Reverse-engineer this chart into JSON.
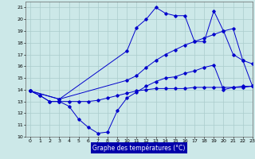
{
  "xlabel": "Graphe des températures (°C)",
  "bg_color": "#cce8e8",
  "grid_color": "#aacccc",
  "line_color": "#0000cc",
  "xlabel_bg": "#0000aa",
  "xlim": [
    -0.5,
    23
  ],
  "ylim": [
    10,
    21.5
  ],
  "xticks": [
    0,
    1,
    2,
    3,
    4,
    5,
    6,
    7,
    8,
    9,
    10,
    11,
    12,
    13,
    14,
    15,
    16,
    17,
    18,
    19,
    20,
    21,
    22,
    23
  ],
  "yticks": [
    10,
    11,
    12,
    13,
    14,
    15,
    16,
    17,
    18,
    19,
    20,
    21
  ],
  "series": [
    {
      "x": [
        0,
        1,
        2,
        3,
        4,
        5,
        6,
        7,
        8,
        9,
        10,
        11,
        12,
        13,
        14,
        15,
        16,
        17,
        18,
        19,
        20,
        21,
        22,
        23
      ],
      "y": [
        13.9,
        13.5,
        13.0,
        13.0,
        13.0,
        13.0,
        13.0,
        13.1,
        13.3,
        13.5,
        13.7,
        13.9,
        14.0,
        14.1,
        14.1,
        14.1,
        14.1,
        14.2,
        14.2,
        14.2,
        14.2,
        14.2,
        14.2,
        14.3
      ]
    },
    {
      "x": [
        0,
        1,
        2,
        3,
        4,
        5,
        6,
        7,
        8,
        9,
        10,
        11,
        12,
        13,
        14,
        15,
        16,
        17,
        18,
        19,
        20,
        21,
        22,
        23
      ],
      "y": [
        13.9,
        13.5,
        13.0,
        13.0,
        12.6,
        11.5,
        10.8,
        10.3,
        10.4,
        12.2,
        13.3,
        13.8,
        14.3,
        14.7,
        15.0,
        15.1,
        15.4,
        15.6,
        15.9,
        16.1,
        14.0,
        14.2,
        14.3,
        14.3
      ]
    },
    {
      "x": [
        0,
        3,
        10,
        11,
        12,
        13,
        14,
        15,
        16,
        17,
        18,
        19,
        20,
        21,
        22,
        23
      ],
      "y": [
        13.9,
        13.2,
        14.8,
        15.2,
        15.9,
        16.5,
        17.0,
        17.4,
        17.8,
        18.1,
        18.4,
        18.7,
        19.0,
        19.2,
        16.5,
        14.3
      ]
    },
    {
      "x": [
        0,
        3,
        10,
        11,
        12,
        13,
        14,
        15,
        16,
        17,
        18,
        19,
        20,
        21,
        22,
        23
      ],
      "y": [
        13.9,
        13.2,
        17.3,
        19.3,
        20.0,
        21.0,
        20.5,
        20.3,
        20.3,
        18.1,
        18.1,
        20.7,
        19.0,
        17.0,
        16.5,
        16.2
      ]
    }
  ]
}
